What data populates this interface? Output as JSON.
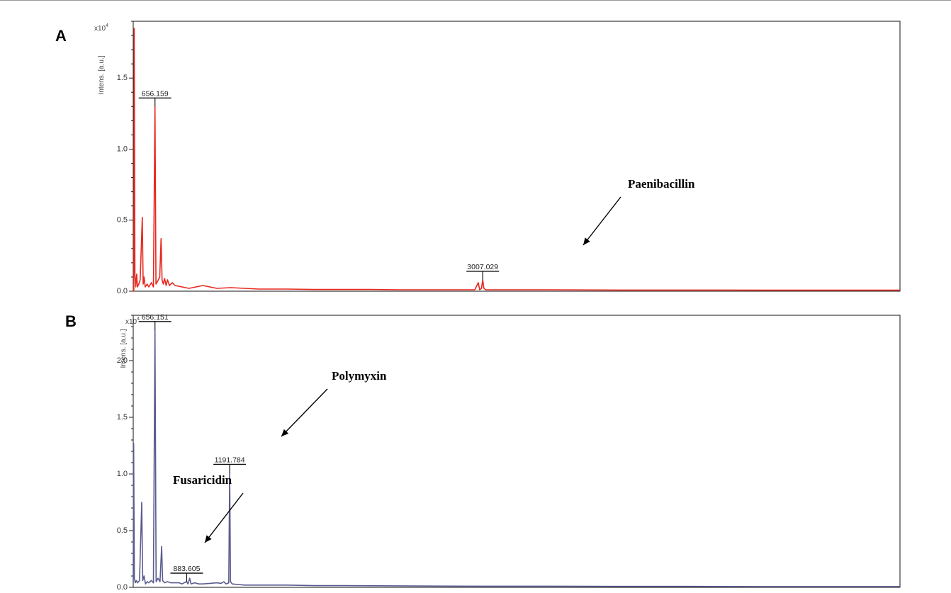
{
  "chart_data": [
    {
      "type": "line",
      "panel_label": "A",
      "ylabel": "Intens. [a.u.]",
      "y_multiplier": "x10",
      "y_multiplier_exp": "4",
      "ylim": [
        0,
        1.9
      ],
      "xlim": [
        500,
        6000
      ],
      "y_ticks": [
        "0.0",
        "0.5",
        "1.0",
        "1.5"
      ],
      "grid": false,
      "line_color": "#e8281f",
      "peak_labels": [
        {
          "mz": 656.159,
          "text": "656.159",
          "intensity": 1.3
        },
        {
          "mz": 3007.029,
          "text": "3007.029",
          "intensity": 0.08
        }
      ],
      "annotations": [
        {
          "text": "Paenibacillin",
          "target_mz": 3007.029
        }
      ],
      "series": [
        {
          "points": [
            [
              500,
              0.02
            ],
            [
              504,
              0.0
            ],
            [
              507,
              1.85
            ],
            [
              512,
              0.12
            ],
            [
              518,
              0.03
            ],
            [
              525,
              0.12
            ],
            [
              530,
              0.03
            ],
            [
              540,
              0.05
            ],
            [
              550,
              0.08
            ],
            [
              565,
              0.52
            ],
            [
              571,
              0.05
            ],
            [
              578,
              0.1
            ],
            [
              586,
              0.03
            ],
            [
              600,
              0.05
            ],
            [
              612,
              0.03
            ],
            [
              630,
              0.06
            ],
            [
              645,
              0.03
            ],
            [
              656.159,
              1.3
            ],
            [
              663,
              0.05
            ],
            [
              675,
              0.07
            ],
            [
              690,
              0.1
            ],
            [
              700,
              0.37
            ],
            [
              707,
              0.08
            ],
            [
              716,
              0.05
            ],
            [
              725,
              0.09
            ],
            [
              736,
              0.04
            ],
            [
              746,
              0.08
            ],
            [
              760,
              0.04
            ],
            [
              780,
              0.06
            ],
            [
              800,
              0.04
            ],
            [
              850,
              0.03
            ],
            [
              900,
              0.02
            ],
            [
              950,
              0.03
            ],
            [
              1000,
              0.04
            ],
            [
              1050,
              0.03
            ],
            [
              1100,
              0.02
            ],
            [
              1200,
              0.025
            ],
            [
              1300,
              0.02
            ],
            [
              1400,
              0.015
            ],
            [
              1600,
              0.015
            ],
            [
              1800,
              0.012
            ],
            [
              2000,
              0.012
            ],
            [
              2200,
              0.012
            ],
            [
              2400,
              0.01
            ],
            [
              2600,
              0.01
            ],
            [
              2800,
              0.01
            ],
            [
              2950,
              0.01
            ],
            [
              2975,
              0.06
            ],
            [
              2985,
              0.01
            ],
            [
              2998,
              0.02
            ],
            [
              3007.029,
              0.08
            ],
            [
              3015,
              0.02
            ],
            [
              3030,
              0.01
            ],
            [
              3200,
              0.01
            ],
            [
              3500,
              0.01
            ],
            [
              4000,
              0.008
            ],
            [
              4500,
              0.008
            ],
            [
              5000,
              0.007
            ],
            [
              5500,
              0.007
            ],
            [
              6000,
              0.007
            ]
          ]
        }
      ]
    },
    {
      "type": "line",
      "panel_label": "B",
      "ylabel": "Intens. [a.u.]",
      "y_multiplier": "x10",
      "y_multiplier_exp": "4",
      "ylim": [
        0,
        2.4
      ],
      "xlim": [
        500,
        6000
      ],
      "y_ticks": [
        "0.0",
        "0.5",
        "1.0",
        "1.5",
        "2.0"
      ],
      "grid": false,
      "line_color": "#5a5b8f",
      "peak_labels": [
        {
          "mz": 656.151,
          "text": "656.151",
          "intensity": 2.27
        },
        {
          "mz": 883.605,
          "text": "883.605",
          "intensity": 0.05
        },
        {
          "mz": 1191.784,
          "text": "1191.784",
          "intensity": 1.01
        }
      ],
      "annotations": [
        {
          "text": "Polymyxin",
          "target_mz": 1191.784
        },
        {
          "text": "Fusaricidin",
          "target_mz": 883.605
        }
      ],
      "series": [
        {
          "points": [
            [
              500,
              0.05
            ],
            [
              503,
              1.27
            ],
            [
              508,
              0.08
            ],
            [
              514,
              0.04
            ],
            [
              522,
              0.06
            ],
            [
              530,
              0.04
            ],
            [
              545,
              0.06
            ],
            [
              561,
              0.75
            ],
            [
              568,
              0.06
            ],
            [
              578,
              0.1
            ],
            [
              588,
              0.03
            ],
            [
              600,
              0.05
            ],
            [
              612,
              0.04
            ],
            [
              630,
              0.06
            ],
            [
              645,
              0.04
            ],
            [
              656.151,
              2.27
            ],
            [
              664,
              0.05
            ],
            [
              678,
              0.08
            ],
            [
              692,
              0.05
            ],
            [
              704,
              0.36
            ],
            [
              711,
              0.06
            ],
            [
              725,
              0.04
            ],
            [
              745,
              0.05
            ],
            [
              770,
              0.04
            ],
            [
              800,
              0.04
            ],
            [
              830,
              0.04
            ],
            [
              850,
              0.03
            ],
            [
              865,
              0.04
            ],
            [
              883.605,
              0.05
            ],
            [
              893,
              0.03
            ],
            [
              905,
              0.08
            ],
            [
              915,
              0.03
            ],
            [
              940,
              0.04
            ],
            [
              970,
              0.03
            ],
            [
              1000,
              0.03
            ],
            [
              1050,
              0.035
            ],
            [
              1100,
              0.04
            ],
            [
              1130,
              0.035
            ],
            [
              1150,
              0.05
            ],
            [
              1165,
              0.03
            ],
            [
              1185,
              0.04
            ],
            [
              1191.784,
              1.01
            ],
            [
              1198,
              0.05
            ],
            [
              1210,
              0.03
            ],
            [
              1250,
              0.025
            ],
            [
              1300,
              0.02
            ],
            [
              1400,
              0.02
            ],
            [
              1600,
              0.02
            ],
            [
              1800,
              0.015
            ],
            [
              2000,
              0.015
            ],
            [
              2500,
              0.012
            ],
            [
              3000,
              0.01
            ],
            [
              3500,
              0.01
            ],
            [
              4000,
              0.008
            ],
            [
              4500,
              0.008
            ],
            [
              5000,
              0.007
            ],
            [
              5500,
              0.007
            ],
            [
              6000,
              0.007
            ]
          ]
        }
      ]
    }
  ]
}
